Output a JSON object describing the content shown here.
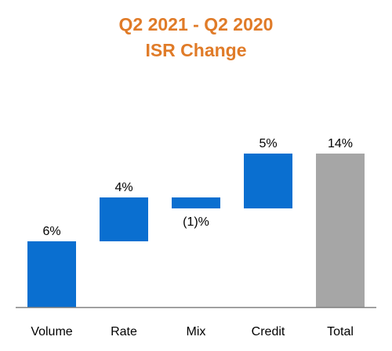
{
  "colors": {
    "title": "#E07B28",
    "bar": "#0A6FD0",
    "total_bar": "#A6A6A6",
    "axis": "#808080"
  },
  "chart_data": {
    "type": "bar",
    "subtype": "waterfall",
    "title": "Q2 2021 - Q2 2020",
    "subtitle": "ISR Change",
    "categories": [
      "Volume",
      "Rate",
      "Mix",
      "Credit",
      "Total"
    ],
    "values": [
      6,
      4,
      -1,
      5,
      14
    ],
    "value_labels": [
      "6%",
      "4%",
      "(1)%",
      "5%",
      "14%"
    ],
    "unit": "%",
    "total_index": 4,
    "ylim": [
      0,
      14.5
    ],
    "grid": false,
    "legend": "none"
  }
}
